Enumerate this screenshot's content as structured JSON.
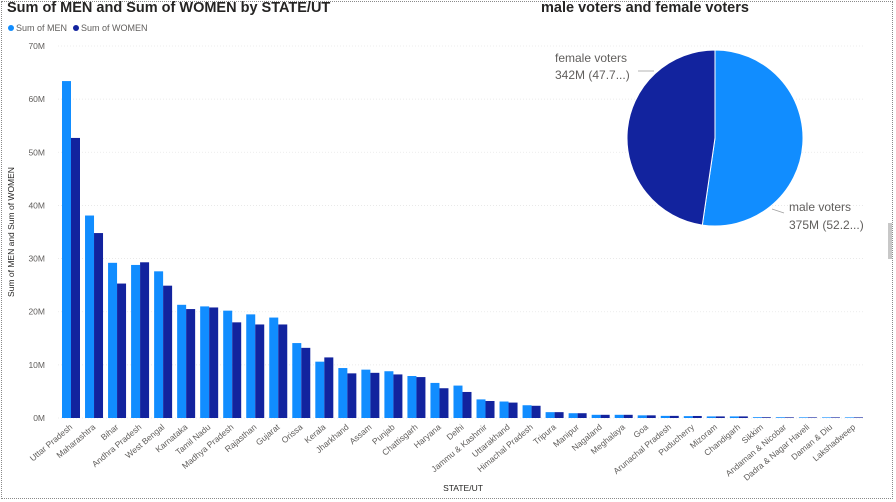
{
  "bar_chart": {
    "title": "Sum of MEN and Sum of WOMEN by STATE/UT",
    "xlabel": "STATE/UT",
    "ylabel": "Sum of MEN and Sum of WOMEN",
    "legend": [
      {
        "name": "Sum of MEN",
        "color": "#118DFF"
      },
      {
        "name": "Sum of WOMEN",
        "color": "#12239E"
      }
    ]
  },
  "pie_chart": {
    "title": "male voters and female voters",
    "labels": [
      {
        "name": "female voters",
        "value_text": "342M (47.7...)"
      },
      {
        "name": "male voters",
        "value_text": "375M (52.2...)"
      }
    ]
  },
  "chart_data": [
    {
      "type": "bar",
      "title": "Sum of MEN and Sum of WOMEN by STATE/UT",
      "xlabel": "STATE/UT",
      "ylabel": "Sum of MEN and Sum of WOMEN",
      "ylim": [
        0,
        70
      ],
      "y_ticks": [
        "0M",
        "10M",
        "20M",
        "30M",
        "40M",
        "50M",
        "60M",
        "70M"
      ],
      "y_unit": "M",
      "grid": true,
      "legend_position": "top-left",
      "categories": [
        "Uttar Pradesh",
        "Maharashtra",
        "Bihar",
        "Andhra Pradesh",
        "West Bengal",
        "Karnataka",
        "Tamil Nadu",
        "Madhya Pradesh",
        "Rajasthan",
        "Gujarat",
        "Orissa",
        "Kerala",
        "Jharkhand",
        "Assam",
        "Punjab",
        "Chattisgarh",
        "Haryana",
        "Delhi",
        "Jammu & Kashmir",
        "Uttarakhand",
        "Himachal Pradesh",
        "Tripura",
        "Manipur",
        "Nagaland",
        "Meghalaya",
        "Goa",
        "Arunachal Pradesh",
        "Puducherry",
        "Mizoram",
        "Chandigarh",
        "Sikkim",
        "Andaman & Nicobar",
        "Dadra & Nagar Haveli",
        "Daman & Diu",
        "Lakshadweep"
      ],
      "series": [
        {
          "name": "Sum of MEN",
          "color": "#118DFF",
          "values": [
            63.4,
            38.1,
            29.2,
            28.8,
            27.6,
            21.3,
            21.0,
            20.2,
            19.5,
            18.9,
            14.1,
            10.6,
            9.4,
            9.1,
            8.8,
            7.9,
            6.6,
            6.1,
            3.5,
            3.1,
            2.4,
            1.1,
            0.9,
            0.6,
            0.6,
            0.5,
            0.4,
            0.35,
            0.3,
            0.3,
            0.15,
            0.14,
            0.12,
            0.06,
            0.03
          ]
        },
        {
          "name": "Sum of WOMEN",
          "color": "#12239E",
          "values": [
            52.7,
            34.8,
            25.3,
            29.3,
            24.9,
            20.5,
            20.8,
            18.0,
            17.6,
            17.6,
            13.2,
            11.4,
            8.4,
            8.5,
            8.2,
            7.7,
            5.6,
            4.9,
            3.2,
            2.9,
            2.3,
            1.1,
            0.9,
            0.6,
            0.6,
            0.5,
            0.4,
            0.38,
            0.3,
            0.3,
            0.14,
            0.12,
            0.1,
            0.05,
            0.03
          ]
        }
      ]
    },
    {
      "type": "pie",
      "title": "male voters and female voters",
      "slices": [
        {
          "name": "male voters",
          "value": 375,
          "value_text": "375M (52.2...)",
          "color": "#118DFF"
        },
        {
          "name": "female voters",
          "value": 342,
          "value_text": "342M (47.7...)",
          "color": "#12239E"
        }
      ]
    }
  ]
}
